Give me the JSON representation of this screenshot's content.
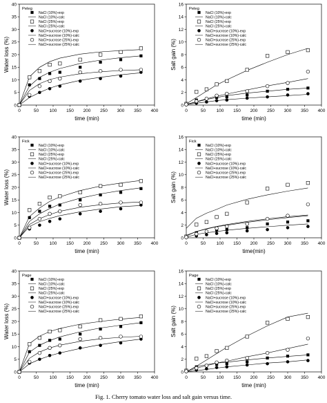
{
  "caption": "Fig. 1. Cherry tomato water loss and salt gain versus time.",
  "legend_labels": {
    "nacl10_exp": "NaCl (10%)-exp",
    "nacl10_calc": "NaCl (10%)-calc",
    "nacl25_exp": "NaCl (25%)-exp",
    "nacl25_calc": "NaCl (25%)-calc",
    "suc10_exp": "NaCl+sucrose (10%)-exp",
    "suc10_calc": "NaCl+sucrose (10%)-calc",
    "suc25_exp": "NaCl+sucrose (25%)-exp",
    "suc25_calc": "NaCl+sucrose (25%)-calc"
  },
  "chart_data": [
    {
      "type": "scatter",
      "model": "Peleg",
      "xlabel": "time (min)",
      "ylabel": "Water loss (%)",
      "xlim": [
        0,
        400
      ],
      "ylim": [
        0,
        40
      ],
      "xticks": [
        0,
        50,
        100,
        150,
        200,
        250,
        300,
        350,
        400
      ],
      "yticks": [
        0,
        5,
        10,
        15,
        20,
        25,
        30,
        35,
        40
      ],
      "x": [
        0,
        30,
        60,
        90,
        120,
        180,
        240,
        300,
        360
      ],
      "series": [
        {
          "key": "nacl10",
          "marker": "filled-square",
          "exp": [
            0,
            8,
            10.5,
            12.5,
            13,
            15,
            17,
            18,
            19.5
          ],
          "calc": [
            0,
            7.5,
            11,
            13,
            14.5,
            16.5,
            17.8,
            18.8,
            19.5
          ]
        },
        {
          "key": "nacl25",
          "marker": "open-square",
          "exp": [
            0,
            11,
            13.5,
            16,
            16.5,
            18,
            20,
            21,
            22.5
          ],
          "calc": [
            0,
            11.2,
            15,
            17.2,
            18.6,
            20.2,
            21.1,
            21.6,
            22
          ]
        },
        {
          "key": "suc10",
          "marker": "filled-circle",
          "exp": [
            0,
            3.5,
            5,
            6.5,
            7.5,
            9.5,
            10.5,
            11.5,
            13
          ],
          "calc": [
            0,
            3,
            5,
            6.7,
            8,
            9.8,
            11,
            12,
            12.8
          ]
        },
        {
          "key": "suc25",
          "marker": "open-circle",
          "exp": [
            0,
            4,
            7.5,
            9.5,
            10.5,
            13,
            13.5,
            14,
            14
          ],
          "calc": [
            0,
            5.8,
            8.5,
            10.1,
            11.1,
            12.4,
            13.2,
            13.7,
            14
          ]
        }
      ]
    },
    {
      "type": "scatter",
      "model": "Peleg",
      "xlabel": "time (min)",
      "ylabel": "Salt gain (%)",
      "xlim": [
        0,
        400
      ],
      "ylim": [
        0,
        16
      ],
      "xticks": [
        0,
        50,
        100,
        150,
        200,
        250,
        300,
        350,
        400
      ],
      "yticks": [
        0,
        2,
        4,
        6,
        8,
        10,
        12,
        14,
        16
      ],
      "x": [
        0,
        30,
        60,
        90,
        120,
        180,
        240,
        300,
        360
      ],
      "series": [
        {
          "key": "nacl10",
          "marker": "filled-square",
          "exp": [
            0.1,
            0.8,
            1,
            1.2,
            1.3,
            1.6,
            2.2,
            2.5,
            2.7
          ],
          "calc": [
            0.1,
            0.5,
            0.9,
            1.2,
            1.5,
            1.9,
            2.2,
            2.5,
            2.7
          ]
        },
        {
          "key": "nacl25",
          "marker": "open-square",
          "exp": [
            0.2,
            2.1,
            2.5,
            3.3,
            3.8,
            5.6,
            7.8,
            8.4,
            8.7
          ],
          "calc": [
            0.2,
            1.2,
            2.2,
            3.2,
            4,
            5.5,
            6.8,
            8,
            9
          ]
        },
        {
          "key": "suc10",
          "marker": "filled-circle",
          "exp": [
            0.1,
            0.3,
            0.5,
            0.7,
            0.8,
            1.1,
            1.3,
            1.6,
            1.8
          ],
          "calc": [
            0.1,
            0.3,
            0.5,
            0.7,
            0.85,
            1.1,
            1.3,
            1.5,
            1.7
          ]
        },
        {
          "key": "suc25",
          "marker": "open-circle",
          "exp": [
            0.1,
            0.6,
            1,
            1.5,
            1.8,
            2.2,
            3,
            3.5,
            5.3
          ],
          "calc": [
            0.1,
            0.55,
            1,
            1.4,
            1.75,
            2.4,
            3.05,
            3.6,
            4.2
          ]
        }
      ]
    },
    {
      "type": "scatter",
      "model": "Fick",
      "xlabel": "time (min)",
      "ylabel": "Water loss (%)",
      "xlim": [
        0,
        400
      ],
      "ylim": [
        0,
        40
      ],
      "xticks": [
        0,
        50,
        100,
        150,
        200,
        250,
        300,
        350,
        400
      ],
      "yticks": [
        0,
        5,
        10,
        15,
        20,
        25,
        30,
        35,
        40
      ],
      "x": [
        0,
        30,
        60,
        90,
        120,
        180,
        240,
        300,
        360
      ],
      "series": [
        {
          "key": "nacl10",
          "marker": "filled-square",
          "exp": [
            0,
            8,
            10.5,
            12.5,
            13,
            15,
            17,
            18,
            19.5
          ],
          "calc": [
            0,
            6.5,
            9.5,
            11.6,
            13.4,
            15.7,
            17.4,
            18.7,
            19.8
          ]
        },
        {
          "key": "nacl25",
          "marker": "open-square",
          "exp": [
            0,
            11,
            13.5,
            16,
            16.5,
            18,
            20.5,
            21,
            22.5
          ],
          "calc": [
            0,
            8.4,
            11.8,
            14.4,
            16.2,
            18.7,
            20.5,
            21.7,
            22.7
          ]
        },
        {
          "key": "suc10",
          "marker": "filled-circle",
          "exp": [
            0,
            3.5,
            5,
            6.5,
            7.5,
            9.5,
            10.5,
            11.5,
            13
          ],
          "calc": [
            0,
            4.5,
            6.4,
            7.7,
            8.8,
            10.3,
            11.4,
            12.3,
            12.8
          ]
        },
        {
          "key": "suc25",
          "marker": "open-circle",
          "exp": [
            0,
            4,
            7.5,
            9.5,
            10.5,
            13,
            13.5,
            14,
            14
          ],
          "calc": [
            0,
            5.3,
            7.6,
            9.2,
            10.5,
            12.1,
            13.1,
            13.8,
            14.2
          ]
        }
      ]
    },
    {
      "type": "scatter",
      "model": "Fick",
      "xlabel": "time(min)",
      "ylabel": "Salt gain (%)",
      "xlim": [
        0,
        400
      ],
      "ylim": [
        0,
        16
      ],
      "xticks": [
        0,
        50,
        100,
        150,
        200,
        250,
        300,
        350,
        400
      ],
      "yticks": [
        0,
        2,
        4,
        6,
        8,
        10,
        12,
        14,
        16
      ],
      "x": [
        0,
        30,
        60,
        90,
        120,
        180,
        240,
        300,
        360
      ],
      "series": [
        {
          "key": "nacl10",
          "marker": "filled-square",
          "exp": [
            0.1,
            0.8,
            1,
            1.2,
            1.3,
            1.6,
            2.2,
            2.5,
            2.7
          ],
          "calc": [
            0.3,
            1,
            1.45,
            1.8,
            2.1,
            2.6,
            3,
            3.35,
            3.6
          ]
        },
        {
          "key": "nacl25",
          "marker": "open-square",
          "exp": [
            0.2,
            2.1,
            2.5,
            3.3,
            3.8,
            5.6,
            7.8,
            8.4,
            8.7
          ],
          "calc": [
            1.5,
            3.1,
            3.9,
            4.5,
            5.2,
            6.1,
            6.8,
            7.4,
            7.9
          ]
        },
        {
          "key": "suc10",
          "marker": "filled-circle",
          "exp": [
            0.1,
            0.3,
            0.5,
            0.7,
            0.8,
            1.1,
            1.3,
            1.6,
            1.8
          ],
          "calc": [
            0.1,
            0.55,
            0.8,
            1,
            1.2,
            1.5,
            1.75,
            2,
            2.2
          ]
        },
        {
          "key": "suc25",
          "marker": "open-circle",
          "exp": [
            0.1,
            0.6,
            1,
            1.5,
            1.8,
            2.2,
            3,
            3.5,
            5.3
          ],
          "calc": [
            0.4,
            1,
            1.4,
            1.75,
            2,
            2.45,
            2.85,
            3.2,
            3.5
          ]
        }
      ]
    },
    {
      "type": "scatter",
      "model": "Page",
      "xlabel": "time (min)",
      "ylabel": "Water loss (%)",
      "xlim": [
        0,
        400
      ],
      "ylim": [
        0,
        40
      ],
      "xticks": [
        0,
        50,
        100,
        150,
        200,
        250,
        300,
        350,
        400
      ],
      "yticks": [
        0,
        5,
        10,
        15,
        20,
        25,
        30,
        35,
        40
      ],
      "x": [
        0,
        30,
        60,
        90,
        120,
        180,
        240,
        300,
        360
      ],
      "series": [
        {
          "key": "nacl10",
          "marker": "filled-square",
          "exp": [
            0,
            8,
            10.5,
            12.5,
            13,
            15,
            17,
            18,
            19.5
          ],
          "calc": [
            0,
            7.8,
            10.6,
            12.4,
            13.9,
            15.9,
            17.4,
            18.5,
            19.5
          ]
        },
        {
          "key": "nacl25",
          "marker": "open-square",
          "exp": [
            0,
            11,
            13.5,
            16,
            16.5,
            18,
            20.5,
            21,
            22
          ],
          "calc": [
            0,
            11.2,
            14.2,
            16,
            17.2,
            18.9,
            20,
            20.9,
            21.6
          ]
        },
        {
          "key": "suc10",
          "marker": "filled-circle",
          "exp": [
            0,
            3.5,
            5,
            6.5,
            7.5,
            9.5,
            10.5,
            11.5,
            13
          ],
          "calc": [
            0,
            3.2,
            5,
            6.4,
            7.5,
            9.3,
            10.8,
            12,
            13
          ]
        },
        {
          "key": "suc25",
          "marker": "open-circle",
          "exp": [
            0,
            4,
            7.5,
            9.5,
            10.5,
            13,
            13.5,
            14,
            14
          ],
          "calc": [
            0,
            5.4,
            7.9,
            9.5,
            10.6,
            12.1,
            13.1,
            13.7,
            14.1
          ]
        }
      ]
    },
    {
      "type": "scatter",
      "model": "Page",
      "xlabel": "time (min)",
      "ylabel": "Salt gain (%)",
      "xlim": [
        0,
        400
      ],
      "ylim": [
        0,
        16
      ],
      "xticks": [
        0,
        50,
        100,
        150,
        200,
        250,
        300,
        350,
        400
      ],
      "yticks": [
        0,
        2,
        4,
        6,
        8,
        10,
        12,
        14,
        16
      ],
      "x": [
        0,
        30,
        60,
        90,
        120,
        180,
        240,
        300,
        360
      ],
      "series": [
        {
          "key": "nacl10",
          "marker": "filled-square",
          "exp": [
            0.1,
            0.8,
            1,
            1.2,
            1.3,
            1.6,
            2.2,
            2.5,
            2.7
          ],
          "calc": [
            0,
            0.85,
            1.15,
            1.4,
            1.55,
            1.9,
            2.2,
            2.45,
            2.7
          ]
        },
        {
          "key": "nacl25",
          "marker": "open-square",
          "exp": [
            0.2,
            2.1,
            2.5,
            3.3,
            3.8,
            5.6,
            7.8,
            8.4,
            8.7
          ],
          "calc": [
            0,
            0.9,
            1.9,
            2.9,
            3.9,
            5.7,
            7.3,
            8.7,
            9.3
          ]
        },
        {
          "key": "suc10",
          "marker": "filled-circle",
          "exp": [
            0.1,
            0.3,
            0.5,
            0.7,
            0.8,
            1.1,
            1.3,
            1.6,
            1.8
          ],
          "calc": [
            0,
            0.2,
            0.4,
            0.6,
            0.8,
            1.1,
            1.4,
            1.6,
            1.9
          ]
        },
        {
          "key": "suc25",
          "marker": "open-circle",
          "exp": [
            0.1,
            0.6,
            1,
            1.5,
            1.8,
            2.2,
            3,
            3.5,
            5.3
          ],
          "calc": [
            0,
            0.6,
            1,
            1.4,
            1.7,
            2.4,
            3,
            3.7,
            4.4
          ]
        }
      ]
    }
  ]
}
